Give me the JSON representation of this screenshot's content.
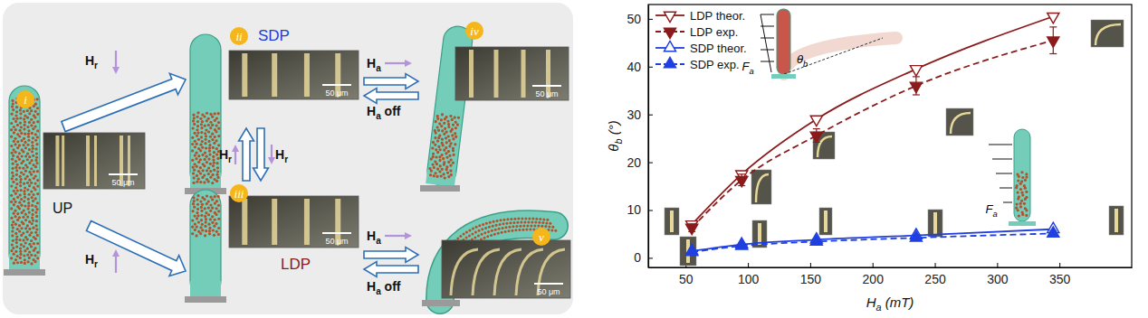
{
  "diagram": {
    "panels": [
      {
        "label": "i",
        "caption": "UP",
        "scale_bar": "50 μm"
      },
      {
        "label": "ii",
        "caption": "SDP",
        "scale_bar": "50 μm"
      },
      {
        "label": "iii",
        "caption": "LDP",
        "scale_bar": "50 μm"
      },
      {
        "label": "iv",
        "scale_bar": "50 μm"
      },
      {
        "label": "v",
        "scale_bar": "50 μm"
      }
    ],
    "field_labels": [
      "Hr",
      "Hr",
      "Hr",
      "Hr",
      "Ha",
      "Ha off",
      "Ha",
      "Ha off"
    ]
  },
  "chart_data": {
    "type": "line",
    "xlabel": "Ha (mT)",
    "ylabel": "θb (°)",
    "x": [
      55,
      95,
      155,
      235,
      345
    ],
    "xlim": [
      20,
      408
    ],
    "xticks": [
      50,
      100,
      150,
      200,
      250,
      300,
      350
    ],
    "ylim": [
      -2,
      53
    ],
    "yticks": [
      0,
      10,
      20,
      30,
      40,
      50
    ],
    "legend": "upper left",
    "series": [
      {
        "name": "LDP theor.",
        "color": "#8b1a1a",
        "marker": "triangle-down-open",
        "line_style": "solid",
        "values": [
          7.0,
          17.5,
          29.0,
          39.5,
          50.5
        ]
      },
      {
        "name": "LDP exp.",
        "color": "#8b1a1a",
        "marker": "triangle-down",
        "line_style": "dashed",
        "values": [
          6.3,
          16.3,
          25.6,
          36.0,
          45.5
        ],
        "errors": [
          0.8,
          1.2,
          1.4,
          1.9,
          2.8
        ]
      },
      {
        "name": "SDP theor.",
        "color": "#1f3fe0",
        "marker": "triangle-up-open",
        "line_style": "solid",
        "values": [
          1.4,
          2.8,
          3.8,
          4.7,
          6.0
        ]
      },
      {
        "name": "SDP exp.",
        "color": "#1f3fe0",
        "marker": "triangle-up",
        "line_style": "dashed",
        "values": [
          1.2,
          2.5,
          3.4,
          4.2,
          5.1
        ],
        "errors": [
          0.3,
          0.4,
          0.5,
          0.5,
          0.6
        ]
      }
    ],
    "annotations": [
      "Fa",
      "θb",
      "Fa"
    ]
  }
}
